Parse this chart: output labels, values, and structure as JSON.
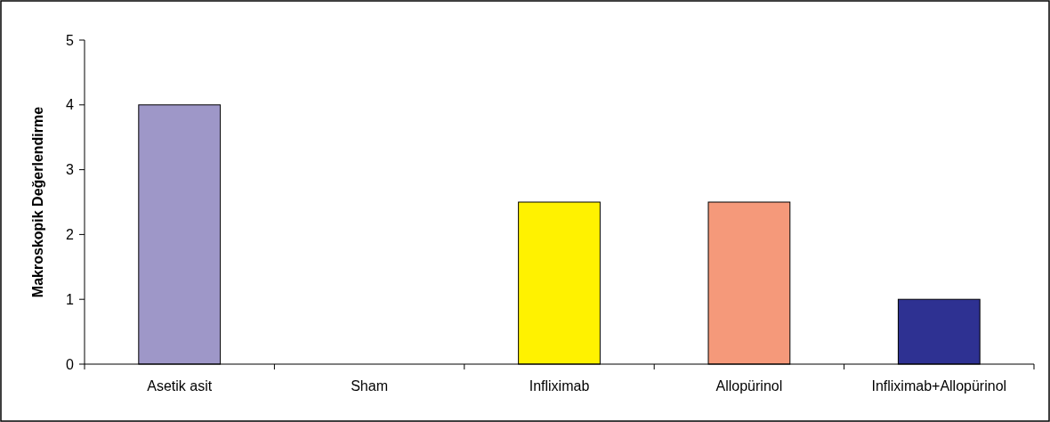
{
  "chart_data": {
    "type": "bar",
    "ylabel": "Makroskopik Değerlendirme",
    "categories": [
      "Asetik asit",
      "Sham",
      "Infliximab",
      "Allopürinol",
      "Infliximab+Allopürinol"
    ],
    "values": [
      4,
      0,
      2.5,
      2.5,
      1
    ],
    "colors": [
      "#9e97c8",
      "#9e97c8",
      "#fff200",
      "#f5997a",
      "#2e3192"
    ],
    "ylim": [
      0,
      5
    ],
    "yticks": [
      0,
      1,
      2,
      3,
      4,
      5
    ]
  }
}
